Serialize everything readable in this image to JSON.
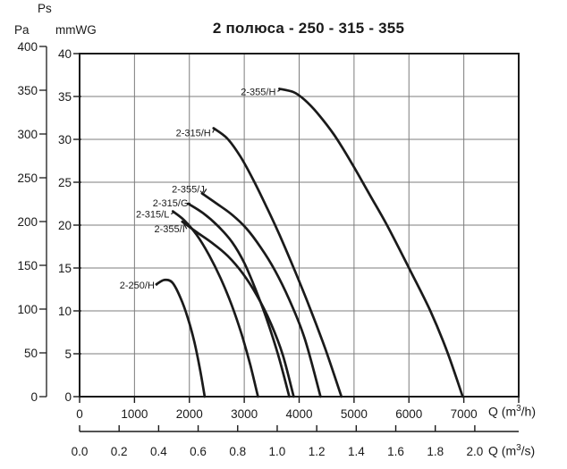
{
  "title": "2 полюса - 250 - 315 - 355",
  "pressure_header": {
    "ps": "Ps",
    "pa": "Pa",
    "mmwg": "mmWG"
  },
  "y_axis_pa": {
    "label": "Pa",
    "ticks": [
      400,
      350,
      300,
      250,
      200,
      150,
      100,
      50,
      0
    ]
  },
  "y_axis_mmwg": {
    "label": "mmWG",
    "ticks": [
      40,
      35,
      30,
      25,
      20,
      15,
      10,
      5,
      0
    ]
  },
  "x_axis_h": {
    "unit_pre": "Q (m",
    "unit_sup": "3",
    "unit_post": "/h)",
    "ticks": [
      0,
      1000,
      2000,
      3000,
      4000,
      5000,
      6000,
      7000
    ]
  },
  "x_axis_s": {
    "unit_pre": "Q (m",
    "unit_sup": "3",
    "unit_post": "/s)",
    "ticks": [
      "0.0",
      "0.2",
      "0.4",
      "0.6",
      "0.8",
      "1.0",
      "1.2",
      "1.4",
      "1.6",
      "1.8",
      "2.0"
    ]
  },
  "chart_data": {
    "type": "line",
    "title": "2 полюса - 250 - 315 - 355",
    "xlabel_m3h": "Q (m3/h)",
    "xlabel_m3s": "Q (m3/s)",
    "ylabel_left": "Pa",
    "ylabel_right_of_left": "mmWG",
    "ylabel_top": "Ps",
    "x_range_m3h": [
      0,
      8000
    ],
    "x_grid_step_m3h": 1000,
    "y_range_mmwg": [
      0,
      40
    ],
    "y_grid_step_mmwg": 5,
    "y_range_pa": [
      0,
      400
    ],
    "pa_tick_step": 50,
    "m3h_per_m3s": 3600,
    "grid": true,
    "legend_position": "inline-curve-labels",
    "series": [
      {
        "name": "2-250/H",
        "units": [
          "m3/h",
          "mmWG"
        ],
        "label_offset": [
          -2,
          5
        ],
        "points": [
          [
            1400,
            13.1
          ],
          [
            1540,
            13.6
          ],
          [
            1690,
            13.3
          ],
          [
            1840,
            11.5
          ],
          [
            1970,
            9.2
          ],
          [
            2090,
            6.4
          ],
          [
            2190,
            3.3
          ],
          [
            2280,
            0
          ]
        ]
      },
      {
        "name": "2-315/L",
        "units": [
          "m3/h",
          "mmWG"
        ],
        "label_offset": [
          -4,
          7
        ],
        "points": [
          [
            1700,
            21.6
          ],
          [
            1900,
            20.6
          ],
          [
            2130,
            18.9
          ],
          [
            2360,
            16.5
          ],
          [
            2570,
            13.8
          ],
          [
            2770,
            10.7
          ],
          [
            2950,
            7.3
          ],
          [
            3110,
            3.7
          ],
          [
            3250,
            0
          ]
        ]
      },
      {
        "name": "2-315/G",
        "units": [
          "m3/h",
          "mmWG"
        ],
        "label_offset": [
          0,
          3
        ],
        "points": [
          [
            1980,
            22.5
          ],
          [
            2250,
            21.4
          ],
          [
            2520,
            19.9
          ],
          [
            2780,
            18.0
          ],
          [
            3000,
            15.6
          ],
          [
            3200,
            12.6
          ],
          [
            3400,
            9.2
          ],
          [
            3620,
            4.8
          ],
          [
            3820,
            0
          ]
        ]
      },
      {
        "name": "2-355/I",
        "units": [
          "m3/h",
          "mmWG"
        ],
        "label_offset": [
          3,
          12
        ],
        "points": [
          [
            1870,
            20.4
          ],
          [
            2150,
            19.1
          ],
          [
            2420,
            17.9
          ],
          [
            2700,
            16.4
          ],
          [
            2980,
            14.3
          ],
          [
            3230,
            11.8
          ],
          [
            3480,
            8.6
          ],
          [
            3700,
            4.9
          ],
          [
            3900,
            0
          ]
        ]
      },
      {
        "name": "2-355/J",
        "units": [
          "m3/h",
          "mmWG"
        ],
        "label_offset": [
          3,
          -1
        ],
        "points": [
          [
            2230,
            23.7
          ],
          [
            2500,
            22.5
          ],
          [
            2780,
            21.2
          ],
          [
            3040,
            19.6
          ],
          [
            3300,
            17.4
          ],
          [
            3560,
            14.7
          ],
          [
            3820,
            11.3
          ],
          [
            4100,
            6.8
          ],
          [
            4390,
            0
          ]
        ]
      },
      {
        "name": "2-315/H",
        "units": [
          "m3/h",
          "mmWG"
        ],
        "label_offset": [
          -3,
          9
        ],
        "points": [
          [
            2440,
            31.3
          ],
          [
            2690,
            30.1
          ],
          [
            2930,
            28.0
          ],
          [
            3170,
            25.2
          ],
          [
            3400,
            22.2
          ],
          [
            3640,
            18.9
          ],
          [
            3900,
            15.0
          ],
          [
            4180,
            10.6
          ],
          [
            4480,
            5.5
          ],
          [
            4770,
            0
          ]
        ]
      },
      {
        "name": "2-355/H",
        "units": [
          "m3/h",
          "mmWG"
        ],
        "label_offset": [
          -4,
          7
        ],
        "points": [
          [
            3640,
            35.9
          ],
          [
            3900,
            35.5
          ],
          [
            4100,
            34.6
          ],
          [
            4340,
            33.0
          ],
          [
            4640,
            30.5
          ],
          [
            4960,
            27.2
          ],
          [
            5280,
            23.6
          ],
          [
            5600,
            20.0
          ],
          [
            6000,
            15.0
          ],
          [
            6390,
            10.0
          ],
          [
            6700,
            5.2
          ],
          [
            6980,
            0
          ]
        ]
      }
    ],
    "colors": {
      "curve": "#1a1a1a",
      "grid": "#7d7d7d",
      "axis": "#1a1a1a",
      "background": "#ffffff"
    }
  }
}
